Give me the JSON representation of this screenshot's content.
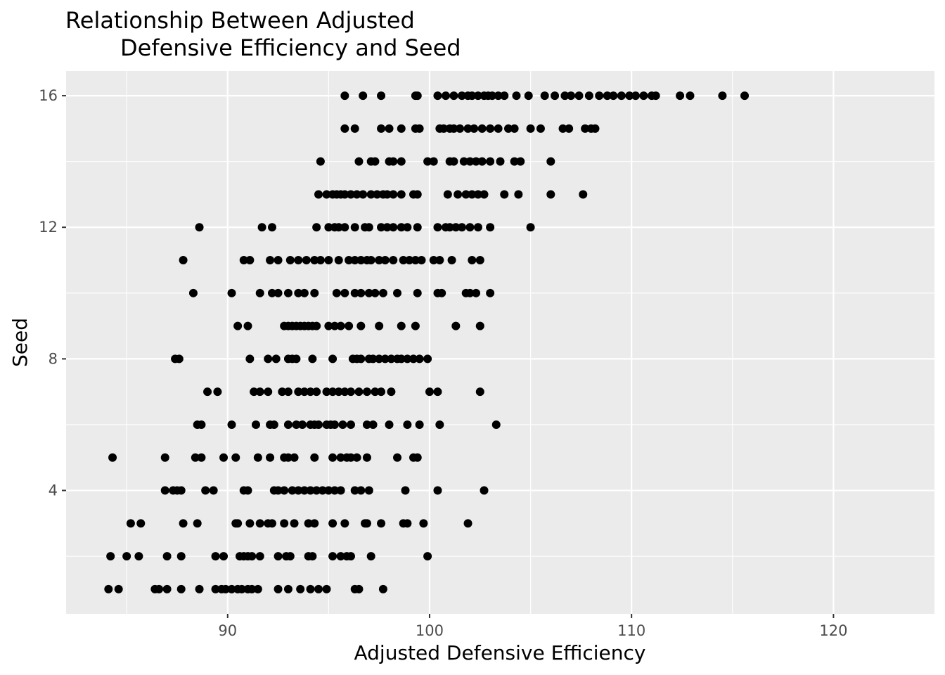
{
  "chart_data": {
    "type": "scatter",
    "title_lines": [
      "Relationship Between Adjusted",
      "Defensive Efficiency and Seed"
    ],
    "xlabel": "Adjusted Defensive Efficiency",
    "ylabel": "Seed",
    "xlim": [
      82,
      125
    ],
    "ylim": [
      0.25,
      16.75
    ],
    "x_ticks": [
      90,
      100,
      110,
      120
    ],
    "x_tick_labels": [
      "90",
      "100",
      "110",
      "120"
    ],
    "y_ticks": [
      4,
      8,
      12,
      16
    ],
    "y_tick_labels": [
      "4",
      "8",
      "12",
      "16"
    ],
    "grid": true,
    "panel_background": "#ebebeb",
    "grid_color": "#ffffff",
    "point_color": "#000000",
    "points_by_seed": {
      "1": [
        84.1,
        84.6,
        86.4,
        86.6,
        87.0,
        87.7,
        88.6,
        89.4,
        89.7,
        89.9,
        90.2,
        90.5,
        90.7,
        91.0,
        91.2,
        91.5,
        92.5,
        93.0,
        93.6,
        94.1,
        94.5,
        94.9,
        96.3,
        96.5,
        97.7
      ],
      "2": [
        84.2,
        85.0,
        85.6,
        87.0,
        87.7,
        89.4,
        89.8,
        90.6,
        90.8,
        91.0,
        91.2,
        91.6,
        92.5,
        92.9,
        93.1,
        94.0,
        94.2,
        95.2,
        95.6,
        95.9,
        96.1,
        97.1,
        99.9
      ],
      "3": [
        85.2,
        85.7,
        87.8,
        88.5,
        90.4,
        90.5,
        91.1,
        91.6,
        92.0,
        92.2,
        92.8,
        93.3,
        94.0,
        94.3,
        95.2,
        95.8,
        96.8,
        96.9,
        97.6,
        98.7,
        98.9,
        99.7,
        101.9
      ],
      "4": [
        86.9,
        87.3,
        87.5,
        87.7,
        88.9,
        89.3,
        90.8,
        91.0,
        92.3,
        92.5,
        92.8,
        93.2,
        93.5,
        93.8,
        94.1,
        94.4,
        94.7,
        95.0,
        95.3,
        95.6,
        96.3,
        96.6,
        97.0,
        98.8,
        100.4,
        102.7
      ],
      "5": [
        84.3,
        86.9,
        88.4,
        88.7,
        89.8,
        90.4,
        91.5,
        92.1,
        92.8,
        93.0,
        93.3,
        94.3,
        95.2,
        95.6,
        95.9,
        96.1,
        96.4,
        96.9,
        98.4,
        99.2,
        99.4
      ],
      "6": [
        88.5,
        88.7,
        90.2,
        91.4,
        92.1,
        92.3,
        93.0,
        93.4,
        93.7,
        94.1,
        94.3,
        94.5,
        94.9,
        95.1,
        95.3,
        95.7,
        96.1,
        96.9,
        97.2,
        98.0,
        98.9,
        99.5,
        100.5,
        103.3
      ],
      "7": [
        89.0,
        89.5,
        91.3,
        91.6,
        92.0,
        92.7,
        93.0,
        93.5,
        93.8,
        94.1,
        94.4,
        94.9,
        95.2,
        95.5,
        95.8,
        96.1,
        96.5,
        96.9,
        97.3,
        97.6,
        98.1,
        100.0,
        100.4,
        102.5
      ],
      "8": [
        87.4,
        87.6,
        91.1,
        92.0,
        92.4,
        93.0,
        93.2,
        93.4,
        94.2,
        95.2,
        96.2,
        96.4,
        96.6,
        97.0,
        97.2,
        97.5,
        97.8,
        98.1,
        98.4,
        98.6,
        98.9,
        99.2,
        99.5,
        99.9
      ],
      "9": [
        90.5,
        91.0,
        92.8,
        93.0,
        93.2,
        93.4,
        93.6,
        93.8,
        94.0,
        94.2,
        94.4,
        95.0,
        95.3,
        95.6,
        96.0,
        96.6,
        97.5,
        98.6,
        99.3,
        101.3,
        102.5
      ],
      "10": [
        88.3,
        90.2,
        91.6,
        92.2,
        92.5,
        93.0,
        93.5,
        93.8,
        94.3,
        95.4,
        95.8,
        96.3,
        96.6,
        97.0,
        97.3,
        97.7,
        98.4,
        99.4,
        100.4,
        100.6,
        101.8,
        102.0,
        102.3,
        103.0
      ],
      "11": [
        87.8,
        90.8,
        91.1,
        92.1,
        92.5,
        93.1,
        93.5,
        93.9,
        94.3,
        94.6,
        95.0,
        95.5,
        96.0,
        96.3,
        96.6,
        96.9,
        97.1,
        97.5,
        97.8,
        98.2,
        98.7,
        99.0,
        99.3,
        99.6,
        100.2,
        100.5,
        101.1,
        102.1,
        102.5
      ],
      "12": [
        88.6,
        91.7,
        92.2,
        94.4,
        95.0,
        95.3,
        95.5,
        95.8,
        96.3,
        96.8,
        97.0,
        97.6,
        97.9,
        98.2,
        98.6,
        98.9,
        99.4,
        100.4,
        100.8,
        101.0,
        101.3,
        101.6,
        102.0,
        102.4,
        103.0,
        105.0
      ],
      "13": [
        94.5,
        94.9,
        95.2,
        95.4,
        95.6,
        95.8,
        96.1,
        96.4,
        96.7,
        97.1,
        97.4,
        97.7,
        97.9,
        98.2,
        98.6,
        99.2,
        99.4,
        100.9,
        101.4,
        101.8,
        102.1,
        102.4,
        102.7,
        103.7,
        104.4,
        106.0,
        107.6
      ],
      "14": [
        94.6,
        96.5,
        97.1,
        97.3,
        98.0,
        98.2,
        98.6,
        99.9,
        100.2,
        101.0,
        101.2,
        101.7,
        102.0,
        102.3,
        102.6,
        103.0,
        103.5,
        104.2,
        104.5,
        106.0
      ],
      "15": [
        95.8,
        96.3,
        97.6,
        98.0,
        98.6,
        99.3,
        99.5,
        100.5,
        100.7,
        101.0,
        101.2,
        101.5,
        101.9,
        102.2,
        102.6,
        103.0,
        103.4,
        103.9,
        104.2,
        105.0,
        105.5,
        106.6,
        106.9,
        107.7,
        108.0,
        108.2
      ],
      "16": [
        95.8,
        96.7,
        97.6,
        99.3,
        99.4,
        100.4,
        100.8,
        101.2,
        101.6,
        101.9,
        102.1,
        102.4,
        102.7,
        102.9,
        103.1,
        103.4,
        103.7,
        104.3,
        104.9,
        105.7,
        106.2,
        106.7,
        107.0,
        107.4,
        107.9,
        108.4,
        108.8,
        109.1,
        109.5,
        109.9,
        110.2,
        110.6,
        111.0,
        111.2,
        112.4,
        112.9,
        114.5,
        115.6
      ]
    }
  }
}
